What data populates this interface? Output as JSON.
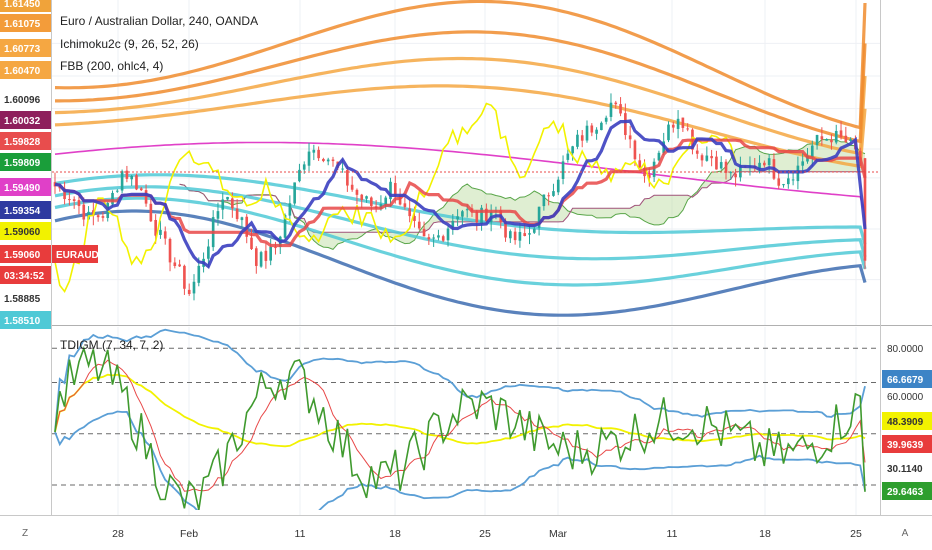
{
  "title": "Euro / Australian Dollar, 240, OANDA",
  "indicators": {
    "ichimoku": "Ichimoku2c (9, 26, 52, 26)",
    "fbb": "FBB (200, ohlc4, 4)",
    "tdigm": "TDIGM (7, 34, 7, 2)"
  },
  "symbol_badge": "EURAUD",
  "countdown": "03:34:52",
  "price_labels": [
    {
      "text": "1.61450",
      "value": 1.6145,
      "bg": "#f0a33a",
      "fg": "#ffffff"
    },
    {
      "text": "1.61075",
      "value": 1.61075,
      "bg": "#f39c3a",
      "fg": "#ffffff"
    },
    {
      "text": "1.60773",
      "value": 1.60773,
      "bg": "#f5a742",
      "fg": "#ffffff"
    },
    {
      "text": "1.60470",
      "value": 1.6047,
      "bg": "#f5a742",
      "fg": "#ffffff"
    },
    {
      "text": "1.60096",
      "value": 1.60096,
      "bg": "",
      "fg": "#333333"
    },
    {
      "text": "1.60032",
      "value": 1.60032,
      "bg": "#8e1f5c",
      "fg": "#ffffff"
    },
    {
      "text": "1.59828",
      "value": 1.59828,
      "bg": "#e84d4d",
      "fg": "#ffffff"
    },
    {
      "text": "1.59809",
      "value": 1.59809,
      "bg": "#1a9e3a",
      "fg": "#ffffff"
    },
    {
      "text": "1.59490",
      "value": 1.5949,
      "bg": "#e040c8",
      "fg": "#ffffff"
    },
    {
      "text": "1.59354",
      "value": 1.59354,
      "bg": "#2e3aa0",
      "fg": "#ffffff"
    },
    {
      "text": "1.59060",
      "value": 1.5906,
      "bg": "#f2f200",
      "fg": "#333333"
    },
    {
      "text": "1.59060",
      "value": 1.5906,
      "bg": "#e83c3c",
      "fg": "#ffffff"
    },
    {
      "text": "1.58885",
      "value": 1.58885,
      "bg": "",
      "fg": "#333333"
    },
    {
      "text": "1.58510",
      "value": 1.5851,
      "bg": "#4fc9d6",
      "fg": "#ffffff"
    }
  ],
  "osc_ticks": [
    "80.0000",
    "60.0000"
  ],
  "osc_labels": [
    {
      "text": "66.6679",
      "value": 66.6679,
      "bg": "#3d84c6",
      "fg": "#ffffff"
    },
    {
      "text": "48.3909",
      "value": 48.3909,
      "bg": "#f2f200",
      "fg": "#333333"
    },
    {
      "text": "39.9639",
      "value": 39.9639,
      "bg": "#e83c3c",
      "fg": "#ffffff"
    },
    {
      "text": "30.1140",
      "value": 30.114,
      "bg": "",
      "fg": "#333333"
    },
    {
      "text": "29.6463",
      "value": 29.6463,
      "bg": "#2e9e2e",
      "fg": "#ffffff"
    }
  ],
  "x_ticks": [
    "28",
    "Feb",
    "11",
    "18",
    "25",
    "Mar",
    "11",
    "18",
    "25"
  ],
  "corner_buttons": {
    "zoom": "Z",
    "auto": "A"
  },
  "colors": {
    "bull": "#26a69a",
    "bear": "#ef5350",
    "conversion": "#3b3fc0",
    "base": "#e84848",
    "lagging": "#f2f200",
    "kumo": "#b7d99b",
    "fbb_mid": "#e040c8",
    "fbb_upper": "#f39c3a",
    "fbb_lower": "#4fc9d6",
    "tdi_rsi": "#3f9a2e",
    "tdi_signal": "#e84848",
    "tdi_mid": "#f2f200",
    "tdi_band": "#5b9fd6"
  },
  "chart_data": [
    {
      "type": "candlestick",
      "title": "Euro / Australian Dollar, 240, OANDA",
      "x_ticks": [
        "28",
        "Feb",
        "11",
        "18",
        "25",
        "Mar",
        "11",
        "18",
        "25"
      ],
      "ylim": [
        1.5851,
        1.6145
      ],
      "y_ticks": [
        1.58885,
        1.60096
      ],
      "ohlc_approx_close_path": [
        1.5975,
        1.5965,
        1.5945,
        1.595,
        1.599,
        1.5975,
        1.5935,
        1.5905,
        1.5875,
        1.592,
        1.597,
        1.5945,
        1.5905,
        1.5915,
        1.5965,
        1.6012,
        1.6005,
        1.5985,
        1.5965,
        1.5955,
        1.5978,
        1.5942,
        1.592,
        1.5932,
        1.5955,
        1.5945,
        1.5955,
        1.5925,
        1.5928,
        1.5962,
        1.5992,
        1.6018,
        1.6033,
        1.6053,
        1.6022,
        1.5982,
        1.6018,
        1.6045,
        1.6007,
        1.6002,
        1.5984,
        1.599,
        1.6002,
        1.598,
        1.5992,
        1.6015,
        1.6022,
        1.6015,
        1.5995
      ],
      "last_close": 1.5906,
      "ichimoku": {
        "conversion_last": 1.59354,
        "base_last": 1.59828,
        "lagging_last": 1.5906
      },
      "fbb": {
        "middle_last": 1.5949,
        "upper_last": [
          1.6047,
          1.60773,
          1.61075,
          1.6145
        ],
        "lower_last": [
          1.5851
        ]
      }
    },
    {
      "type": "line",
      "title": "TDIGM (7, 34, 7, 2)",
      "ylim": [
        25,
        85
      ],
      "y_ticks": [
        60,
        80
      ],
      "series": [
        {
          "name": "",
          "last": 29.6463
        },
        {
          "name": "",
          "last": 39.9639
        },
        {
          "name": "",
          "last": 48.3909
        },
        {
          "name": "",
          "last": 66.6679
        },
        {
          "name": "",
          "last": 30.114
        }
      ],
      "levels": [
        80,
        68,
        50,
        32,
        20
      ]
    }
  ]
}
